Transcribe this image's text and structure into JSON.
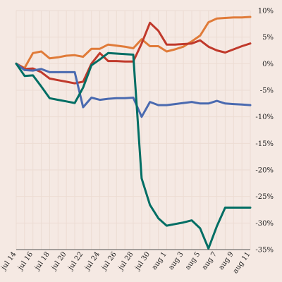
{
  "chart_data": {
    "type": "line",
    "title": "",
    "xlabel": "",
    "ylabel": "",
    "grid": true,
    "x": [
      "2023-07-14",
      "2023-07-15",
      "2023-07-16",
      "2023-07-17",
      "2023-07-18",
      "2023-07-19",
      "2023-07-20",
      "2023-07-21",
      "2023-07-22",
      "2023-07-23",
      "2023-07-24",
      "2023-07-25",
      "2023-07-26",
      "2023-07-27",
      "2023-07-28",
      "2023-07-29",
      "2023-07-30",
      "2023-07-31",
      "2023-08-01",
      "2023-08-02",
      "2023-08-03",
      "2023-08-04",
      "2023-08-05",
      "2023-08-06",
      "2023-08-07",
      "2023-08-08",
      "2023-08-09",
      "2023-08-10",
      "2023-08-11"
    ],
    "x_tick_labels": [
      "jul 14",
      "jul 16",
      "jul 18",
      "jul 20",
      "jul 22",
      "jul 24",
      "jul 26",
      "jul 28",
      "jul 30",
      "aug 1",
      "aug 3",
      "aug 5",
      "aug 7",
      "aug 9",
      "aug 11"
    ],
    "y_tick_labels": [
      "10%",
      "5%",
      "0%",
      "-5%",
      "-10%",
      "-15%",
      "-20%",
      "-25%",
      "-30%",
      "-35%"
    ],
    "y_ticks": [
      10,
      5,
      0,
      -5,
      -10,
      -15,
      -20,
      -25,
      -30,
      -35
    ],
    "ylim": [
      -35,
      10
    ],
    "series": [
      {
        "color": "#e07b39",
        "values": [
          0,
          -0.8,
          2,
          2.3,
          1,
          1.2,
          1.5,
          1.6,
          1.3,
          2.8,
          2.8,
          3.6,
          3.4,
          3.2,
          2.9,
          4.6,
          3.3,
          3.3,
          2.3,
          2.7,
          3.2,
          4.2,
          5.3,
          7.8,
          8.5,
          8.6,
          8.7,
          8.7,
          8.8
        ]
      },
      {
        "color": "#c0392b",
        "values": [
          0,
          -1,
          -0.9,
          -1.6,
          -2.8,
          -3.1,
          -3.4,
          -3.7,
          -3.4,
          0,
          2,
          0.5,
          0.5,
          0.4,
          0.4,
          3.8,
          7.7,
          6.2,
          3.6,
          3.6,
          3.7,
          3.8,
          4.4,
          3.2,
          2.5,
          2.1,
          2.7,
          3.3,
          3.8
        ]
      },
      {
        "color": "#4a6ab0",
        "values": [
          0,
          -1.2,
          -1.3,
          -1,
          -1.6,
          -1.6,
          -1.6,
          -1.6,
          -8.2,
          -6.4,
          -6.8,
          -6.6,
          -6.5,
          -6.5,
          -6.4,
          -10,
          -7.2,
          -7.8,
          -7.8,
          -7.6,
          -7.4,
          -7.2,
          -7.5,
          -7.5,
          -7,
          -7.5,
          -7.6,
          -7.7,
          -7.8
        ]
      },
      {
        "color": "#006e64",
        "values": [
          0,
          -2.3,
          -2.2,
          -4.3,
          -6.5,
          -6.8,
          -7.1,
          -7.4,
          -4.5,
          -0.3,
          0.8,
          2,
          1.9,
          1.8,
          1.7,
          -21.6,
          -26.6,
          -29.1,
          -30.5,
          -30.2,
          -29.9,
          -29.5,
          -31,
          -34.8,
          -30.6,
          -27.1,
          -27.1,
          -27.1,
          -27.1
        ]
      }
    ]
  }
}
